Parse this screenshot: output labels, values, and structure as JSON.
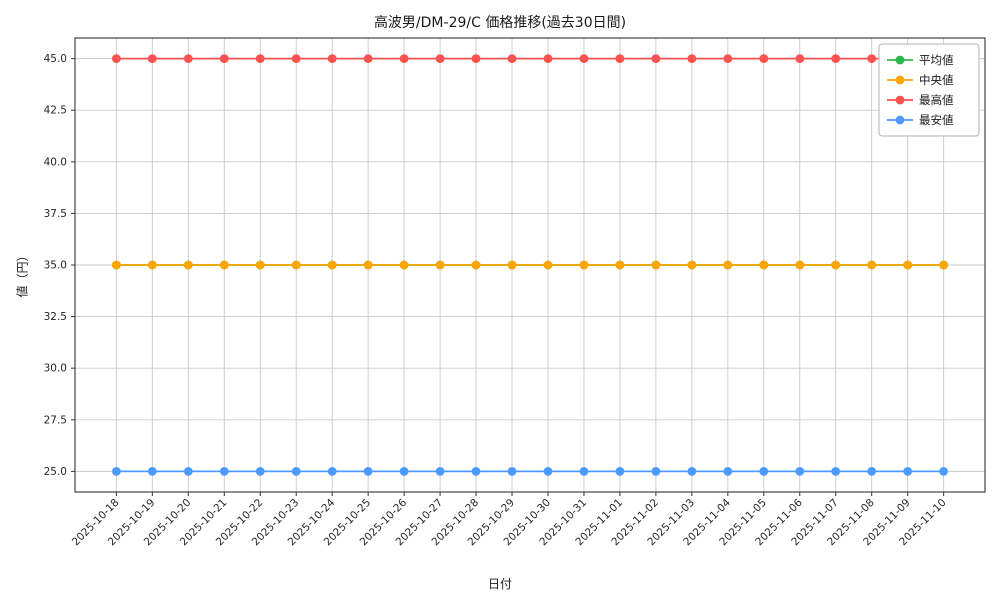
{
  "chart": {
    "title": "高波男/DM-29/C 価格推移(過去30日間)",
    "xlabel": "日付",
    "ylabel": "値（円）"
  },
  "chart_data": {
    "type": "line",
    "title": "高波男/DM-29/C 価格推移(過去30日間)",
    "xlabel": "日付",
    "ylabel": "値（円）",
    "categories": [
      "2025-10-18",
      "2025-10-19",
      "2025-10-20",
      "2025-10-21",
      "2025-10-22",
      "2025-10-23",
      "2025-10-24",
      "2025-10-25",
      "2025-10-26",
      "2025-10-27",
      "2025-10-28",
      "2025-10-29",
      "2025-10-30",
      "2025-10-31",
      "2025-11-01",
      "2025-11-02",
      "2025-11-03",
      "2025-11-04",
      "2025-11-05",
      "2025-11-06",
      "2025-11-07",
      "2025-11-08",
      "2025-11-09",
      "2025-11-10"
    ],
    "series": [
      {
        "name": "平均値",
        "color": "#2db84d",
        "values": [
          35,
          35,
          35,
          35,
          35,
          35,
          35,
          35,
          35,
          35,
          35,
          35,
          35,
          35,
          35,
          35,
          35,
          35,
          35,
          35,
          35,
          35,
          35,
          35
        ]
      },
      {
        "name": "中央値",
        "color": "#ffa500",
        "values": [
          35,
          35,
          35,
          35,
          35,
          35,
          35,
          35,
          35,
          35,
          35,
          35,
          35,
          35,
          35,
          35,
          35,
          35,
          35,
          35,
          35,
          35,
          35,
          35
        ]
      },
      {
        "name": "最高値",
        "color": "#fa5151",
        "values": [
          45,
          45,
          45,
          45,
          45,
          45,
          45,
          45,
          45,
          45,
          45,
          45,
          45,
          45,
          45,
          45,
          45,
          45,
          45,
          45,
          45,
          45,
          45,
          45
        ]
      },
      {
        "name": "最安値",
        "color": "#4d9aff",
        "values": [
          25,
          25,
          25,
          25,
          25,
          25,
          25,
          25,
          25,
          25,
          25,
          25,
          25,
          25,
          25,
          25,
          25,
          25,
          25,
          25,
          25,
          25,
          25,
          25
        ]
      }
    ],
    "ylim": [
      24,
      46
    ],
    "yticks": [
      25.0,
      27.5,
      30.0,
      32.5,
      35.0,
      37.5,
      40.0,
      42.5,
      45.0
    ],
    "grid": true,
    "legend_position": "upper right"
  }
}
